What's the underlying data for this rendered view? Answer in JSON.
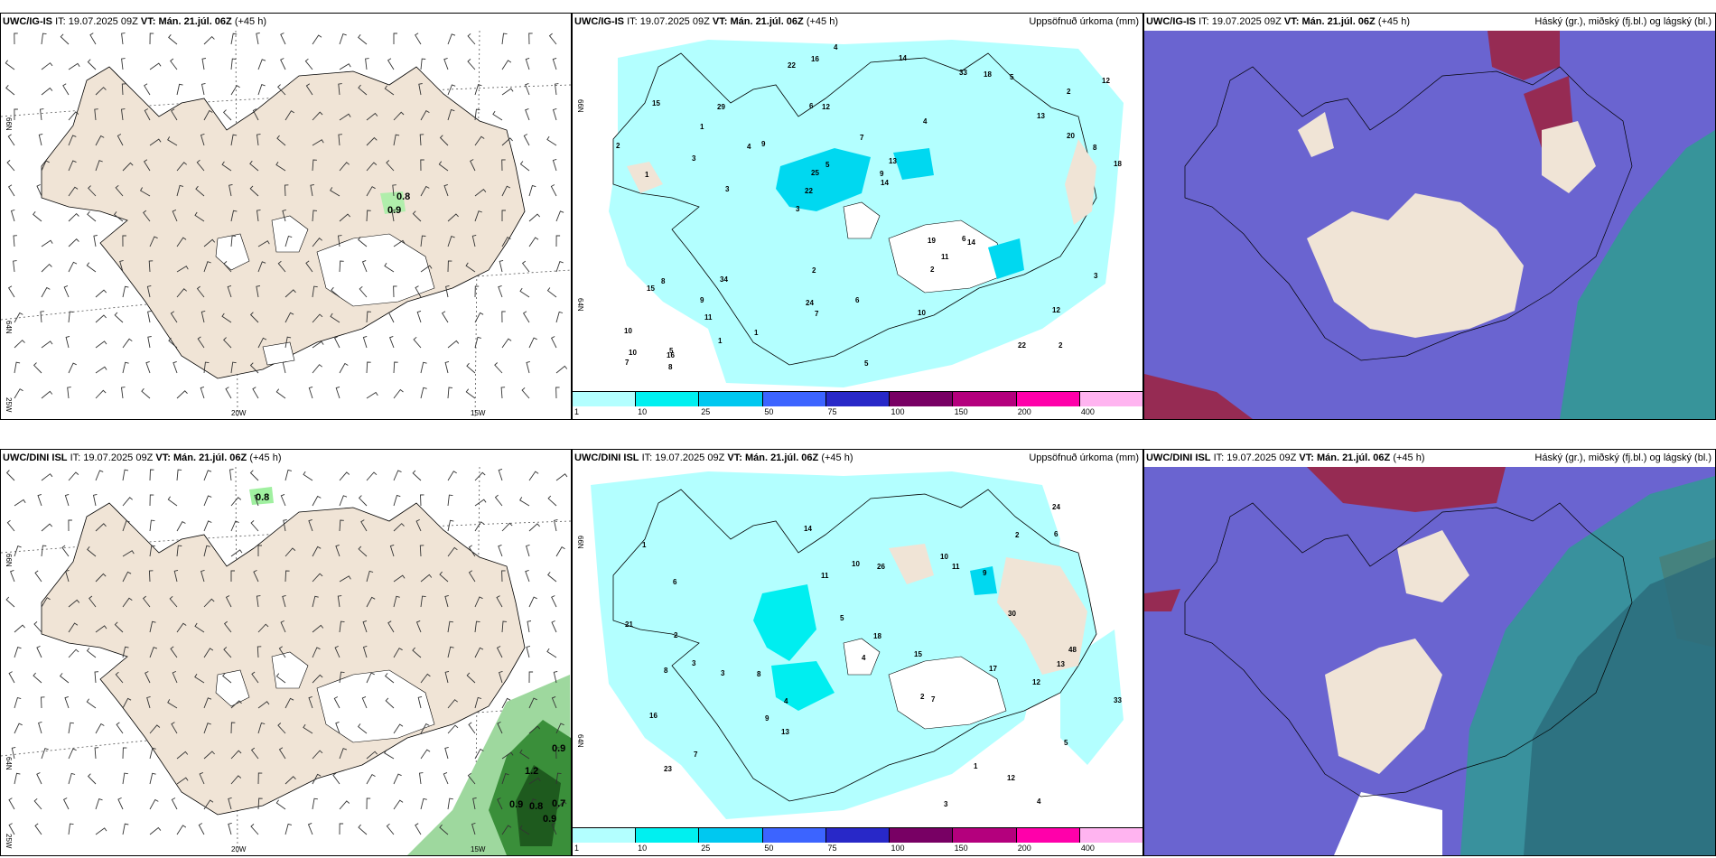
{
  "panels": [
    {
      "id": "top-wind",
      "header": {
        "model": "UWC/IG-IS",
        "it_label": "IT:",
        "it": "19.07.2025 09Z",
        "vt_label": "VT:",
        "vt": "Mán. 21.júl. 06Z",
        "lead": "(+45 h)",
        "right": ""
      },
      "lat_labels": [
        "66N",
        "64N",
        "25W"
      ],
      "lon_labels": [
        "20W",
        "15W"
      ],
      "values": [
        "0.8",
        "0.9"
      ]
    },
    {
      "id": "top-precip",
      "header": {
        "model": "UWC/IG-IS",
        "it_label": "IT:",
        "it": "19.07.2025 09Z",
        "vt_label": "VT:",
        "vt": "Mán. 21.júl. 06Z",
        "lead": "(+45 h)",
        "right": "Uppsöfnuð úrkoma (mm)"
      },
      "lat_labels": [
        "66N",
        "64N"
      ],
      "values": [
        "2",
        "1",
        "2",
        "3",
        "4",
        "5",
        "6",
        "7",
        "8",
        "9",
        "10",
        "11",
        "12",
        "13",
        "14",
        "15",
        "16",
        "18",
        "19",
        "20",
        "22",
        "24",
        "25",
        "29",
        "33",
        "34",
        "22",
        "12",
        "6",
        "5",
        "4",
        "3",
        "2",
        "1",
        "8",
        "9",
        "10",
        "7",
        "14",
        "15",
        "13",
        "12",
        "11",
        "10",
        "9",
        "8",
        "7",
        "6",
        "5",
        "4",
        "3",
        "2",
        "1",
        "18",
        "16",
        "14",
        "22",
        "5",
        "3",
        "2",
        "1"
      ]
    },
    {
      "id": "top-cloud",
      "header": {
        "model": "UWC/IG-IS",
        "it_label": "IT:",
        "it": "19.07.2025 09Z",
        "vt_label": "VT:",
        "vt": "Mán. 21.júl. 06Z",
        "lead": "(+45 h)",
        "right": "Háský (gr.), miðský (fj.bl.) og lágský (bl.)"
      }
    },
    {
      "id": "bottom-wind",
      "header": {
        "model": "UWC/DINI ISL",
        "it_label": "IT:",
        "it": "19.07.2025 09Z",
        "vt_label": "VT:",
        "vt": "Mán. 21.júl. 06Z",
        "lead": "(+45 h)",
        "right": ""
      },
      "lat_labels": [
        "66N",
        "64N",
        "25W"
      ],
      "lon_labels": [
        "20W",
        "15W"
      ],
      "values": [
        "0.8",
        "1.2",
        "0.9",
        "0.9",
        "0.8",
        "0.7",
        "0.9"
      ]
    },
    {
      "id": "bottom-precip",
      "header": {
        "model": "UWC/DINI ISL",
        "it_label": "IT:",
        "it": "19.07.2025 09Z",
        "vt_label": "VT:",
        "vt": "Mán. 21.júl. 06Z",
        "lead": "(+45 h)",
        "right": "Uppsöfnuð úrkoma (mm)"
      },
      "lat_labels": [
        "66N",
        "64N"
      ],
      "values": [
        "4",
        "3",
        "2",
        "1",
        "5",
        "6",
        "7",
        "8",
        "9",
        "10",
        "11",
        "12",
        "13",
        "14",
        "15",
        "16",
        "17",
        "18",
        "21",
        "23",
        "24",
        "26",
        "30",
        "33",
        "48",
        "2",
        "3",
        "4",
        "5",
        "6",
        "7",
        "8",
        "9",
        "10",
        "11",
        "12",
        "13",
        "1",
        "2",
        "3",
        "4"
      ]
    },
    {
      "id": "bottom-cloud",
      "header": {
        "model": "UWC/DINI ISL",
        "it_label": "IT:",
        "it": "19.07.2025 09Z",
        "vt_label": "VT:",
        "vt": "Mán. 21.júl. 06Z",
        "lead": "(+45 h)",
        "right": "Háský (gr.), miðský (fj.bl.) og lágský (bl.)"
      }
    }
  ],
  "colorbar": {
    "labels": [
      "1",
      "10",
      "25",
      "50",
      "75",
      "100",
      "150",
      "200",
      "400"
    ],
    "colors": [
      "#b3ffff",
      "#00f0f0",
      "#00c8f0",
      "#3c64ff",
      "#2828c8",
      "#780064",
      "#b4007d",
      "#ff00aa",
      "#ffb4f0"
    ]
  },
  "colors": {
    "land": "#f0e4d6",
    "glacier": "#ffffff",
    "precip_light": "#b3ffff",
    "precip_mid": "#00f0f0",
    "cloud_mid": "#6a64d0",
    "cloud_high": "#9b2545",
    "cloud_low": "#2aa08c"
  }
}
